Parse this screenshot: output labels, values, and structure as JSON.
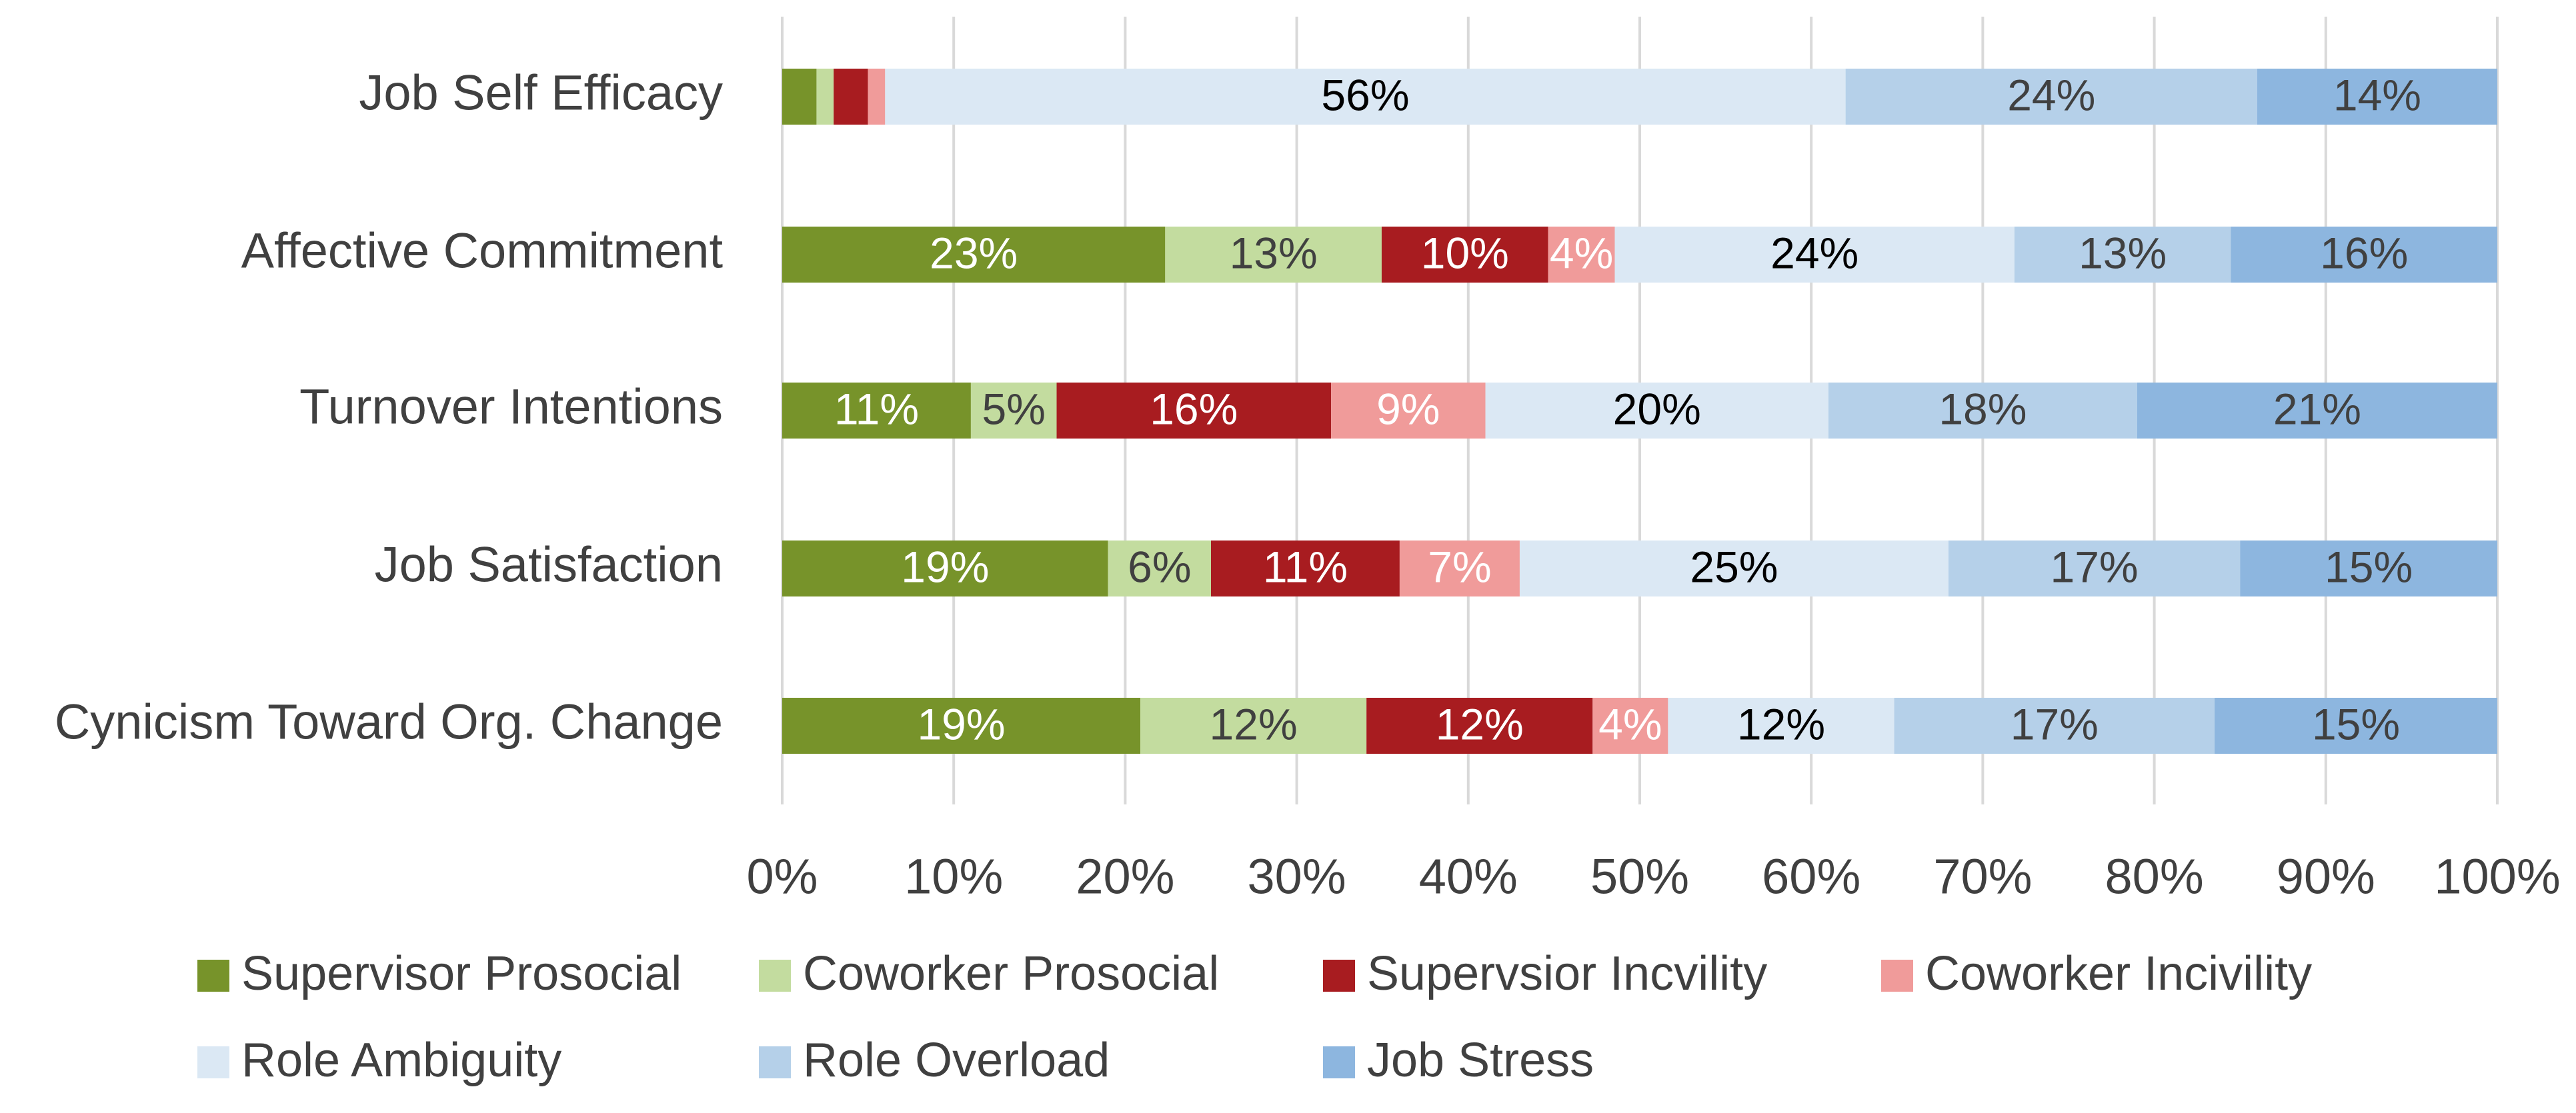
{
  "chart_data": {
    "type": "bar",
    "orientation": "horizontal",
    "stack": "percent",
    "categories": [
      "Job Self Efficacy",
      "Affective Commitment",
      "Turnover Intentions",
      "Job Satisfaction",
      "Cynicism Toward Org. Change"
    ],
    "series": [
      {
        "name": "Supervisor Prosocial",
        "color": "#77932a",
        "label_color": "#ffffff",
        "values": [
          2,
          23,
          11,
          19,
          19
        ],
        "value_labels": [
          null,
          "23%",
          "11%",
          "19%",
          "19%"
        ]
      },
      {
        "name": "Coworker Prosocial",
        "color": "#c3dc9f",
        "label_color": "#404040",
        "values": [
          1,
          13,
          5,
          6,
          12
        ],
        "value_labels": [
          null,
          "13%",
          "5%",
          "6%",
          "12%"
        ]
      },
      {
        "name": "Supervsior Incvility",
        "color": "#a81c20",
        "label_color": "#ffffff",
        "values": [
          2,
          10,
          16,
          11,
          12
        ],
        "value_labels": [
          null,
          "10%",
          "16%",
          "11%",
          "12%"
        ]
      },
      {
        "name": "Coworker Incivility",
        "color": "#f09b9a",
        "label_color": "#ffffff",
        "values": [
          1,
          4,
          9,
          7,
          4
        ],
        "value_labels": [
          null,
          "4%",
          "9%",
          "7%",
          "4%"
        ]
      },
      {
        "name": "Role Ambiguity",
        "color": "#dbe8f4",
        "label_color": "#000000",
        "values": [
          56,
          24,
          20,
          25,
          12
        ],
        "value_labels": [
          "56%",
          "24%",
          "20%",
          "25%",
          "12%"
        ]
      },
      {
        "name": "Role Overload",
        "color": "#b5d0e9",
        "label_color": "#404040",
        "values": [
          24,
          13,
          18,
          17,
          17
        ],
        "value_labels": [
          "24%",
          "13%",
          "18%",
          "17%",
          "17%"
        ]
      },
      {
        "name": "Job Stress",
        "color": "#8db6df",
        "label_color": "#404040",
        "values": [
          14,
          16,
          21,
          15,
          15
        ],
        "value_labels": [
          "14%",
          "16%",
          "21%",
          "15%",
          "15%"
        ]
      }
    ],
    "xlim": [
      0,
      100
    ],
    "xticks": [
      {
        "value": 0,
        "label": "0%"
      },
      {
        "value": 10,
        "label": "10%"
      },
      {
        "value": 20,
        "label": "20%"
      },
      {
        "value": 30,
        "label": "30%"
      },
      {
        "value": 40,
        "label": "40%"
      },
      {
        "value": 50,
        "label": "50%"
      },
      {
        "value": 60,
        "label": "60%"
      },
      {
        "value": 70,
        "label": "70%"
      },
      {
        "value": 80,
        "label": "80%"
      },
      {
        "value": 90,
        "label": "90%"
      },
      {
        "value": 100,
        "label": "100%"
      }
    ],
    "grid": true,
    "legend": "bottom"
  }
}
